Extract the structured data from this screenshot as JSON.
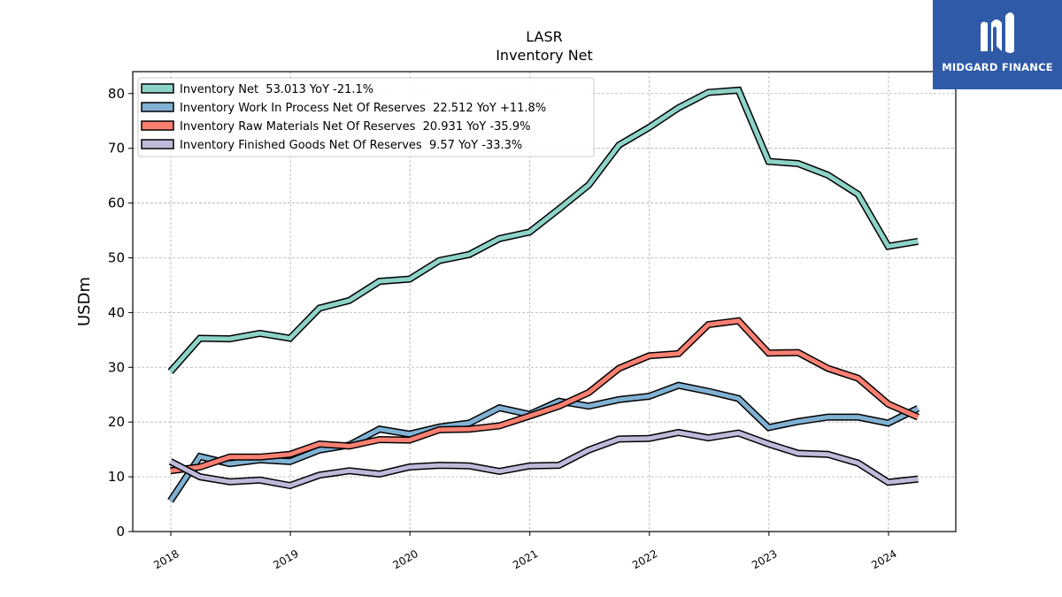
{
  "chart_data": {
    "type": "line",
    "title": "LASR",
    "subtitle": "Inventory Net",
    "ylabel": "USDm",
    "xlabel": "",
    "ylim": [
      0,
      84
    ],
    "yticks": [
      0,
      10,
      20,
      30,
      40,
      50,
      60,
      70,
      80
    ],
    "xticks": [
      "2018",
      "2019",
      "2020",
      "2021",
      "2022",
      "2023",
      "2024"
    ],
    "grid": true,
    "legend_position": "top-left",
    "x": [
      "2017-12-31",
      "2018-03-31",
      "2018-06-30",
      "2018-09-30",
      "2018-12-31",
      "2019-03-31",
      "2019-06-30",
      "2019-09-30",
      "2019-12-31",
      "2020-03-31",
      "2020-06-30",
      "2020-09-30",
      "2020-12-31",
      "2021-03-31",
      "2021-06-30",
      "2021-09-30",
      "2021-12-31",
      "2022-03-31",
      "2022-06-30",
      "2022-09-30",
      "2022-12-31",
      "2023-03-31",
      "2023-06-30",
      "2023-09-30",
      "2023-12-31",
      "2024-03-31"
    ],
    "series": [
      {
        "name": "Inventory Net  53.013 YoY -21.1%",
        "color": "#8dd3c7",
        "values": [
          29.2,
          35.3,
          35.2,
          36.2,
          35.3,
          40.8,
          42.2,
          45.7,
          46.1,
          49.5,
          50.6,
          53.5,
          54.7,
          58.9,
          63.3,
          70.6,
          73.8,
          77.4,
          80.2,
          80.6,
          67.6,
          67.2,
          65.1,
          61.6,
          52.1,
          53.0
        ]
      },
      {
        "name": "Inventory Work In Process Net Of Reserves  22.512 YoY +11.8%",
        "color": "#80b1d3",
        "values": [
          5.6,
          13.7,
          12.4,
          13.1,
          12.8,
          14.9,
          15.8,
          18.7,
          17.8,
          19.1,
          19.8,
          22.6,
          21.4,
          23.8,
          22.9,
          24.1,
          24.7,
          26.7,
          25.6,
          24.3,
          19.0,
          20.1,
          20.9,
          20.9,
          19.8,
          22.5
        ]
      },
      {
        "name": "Inventory Raw Materials Net Of Reserves  20.931 YoY -35.9%",
        "color": "#fb8072",
        "values": [
          11.1,
          11.8,
          13.6,
          13.6,
          14.1,
          16.0,
          15.6,
          16.8,
          16.7,
          18.6,
          18.7,
          19.3,
          21.1,
          22.9,
          25.4,
          29.8,
          32.1,
          32.5,
          37.8,
          38.5,
          32.6,
          32.7,
          29.8,
          28.0,
          23.3,
          20.9
        ]
      },
      {
        "name": "Inventory Finished Goods Net Of Reserves  9.57 YoY -33.3%",
        "color": "#bebada",
        "values": [
          12.8,
          10.0,
          9.1,
          9.4,
          8.4,
          10.3,
          11.1,
          10.5,
          11.8,
          12.1,
          12.0,
          11.0,
          12.0,
          12.1,
          14.9,
          16.9,
          17.0,
          18.1,
          17.1,
          18.0,
          16.0,
          14.3,
          14.1,
          12.5,
          9.0,
          9.6
        ]
      }
    ]
  },
  "logo": {
    "text": "MIDGARD FINANCE"
  }
}
